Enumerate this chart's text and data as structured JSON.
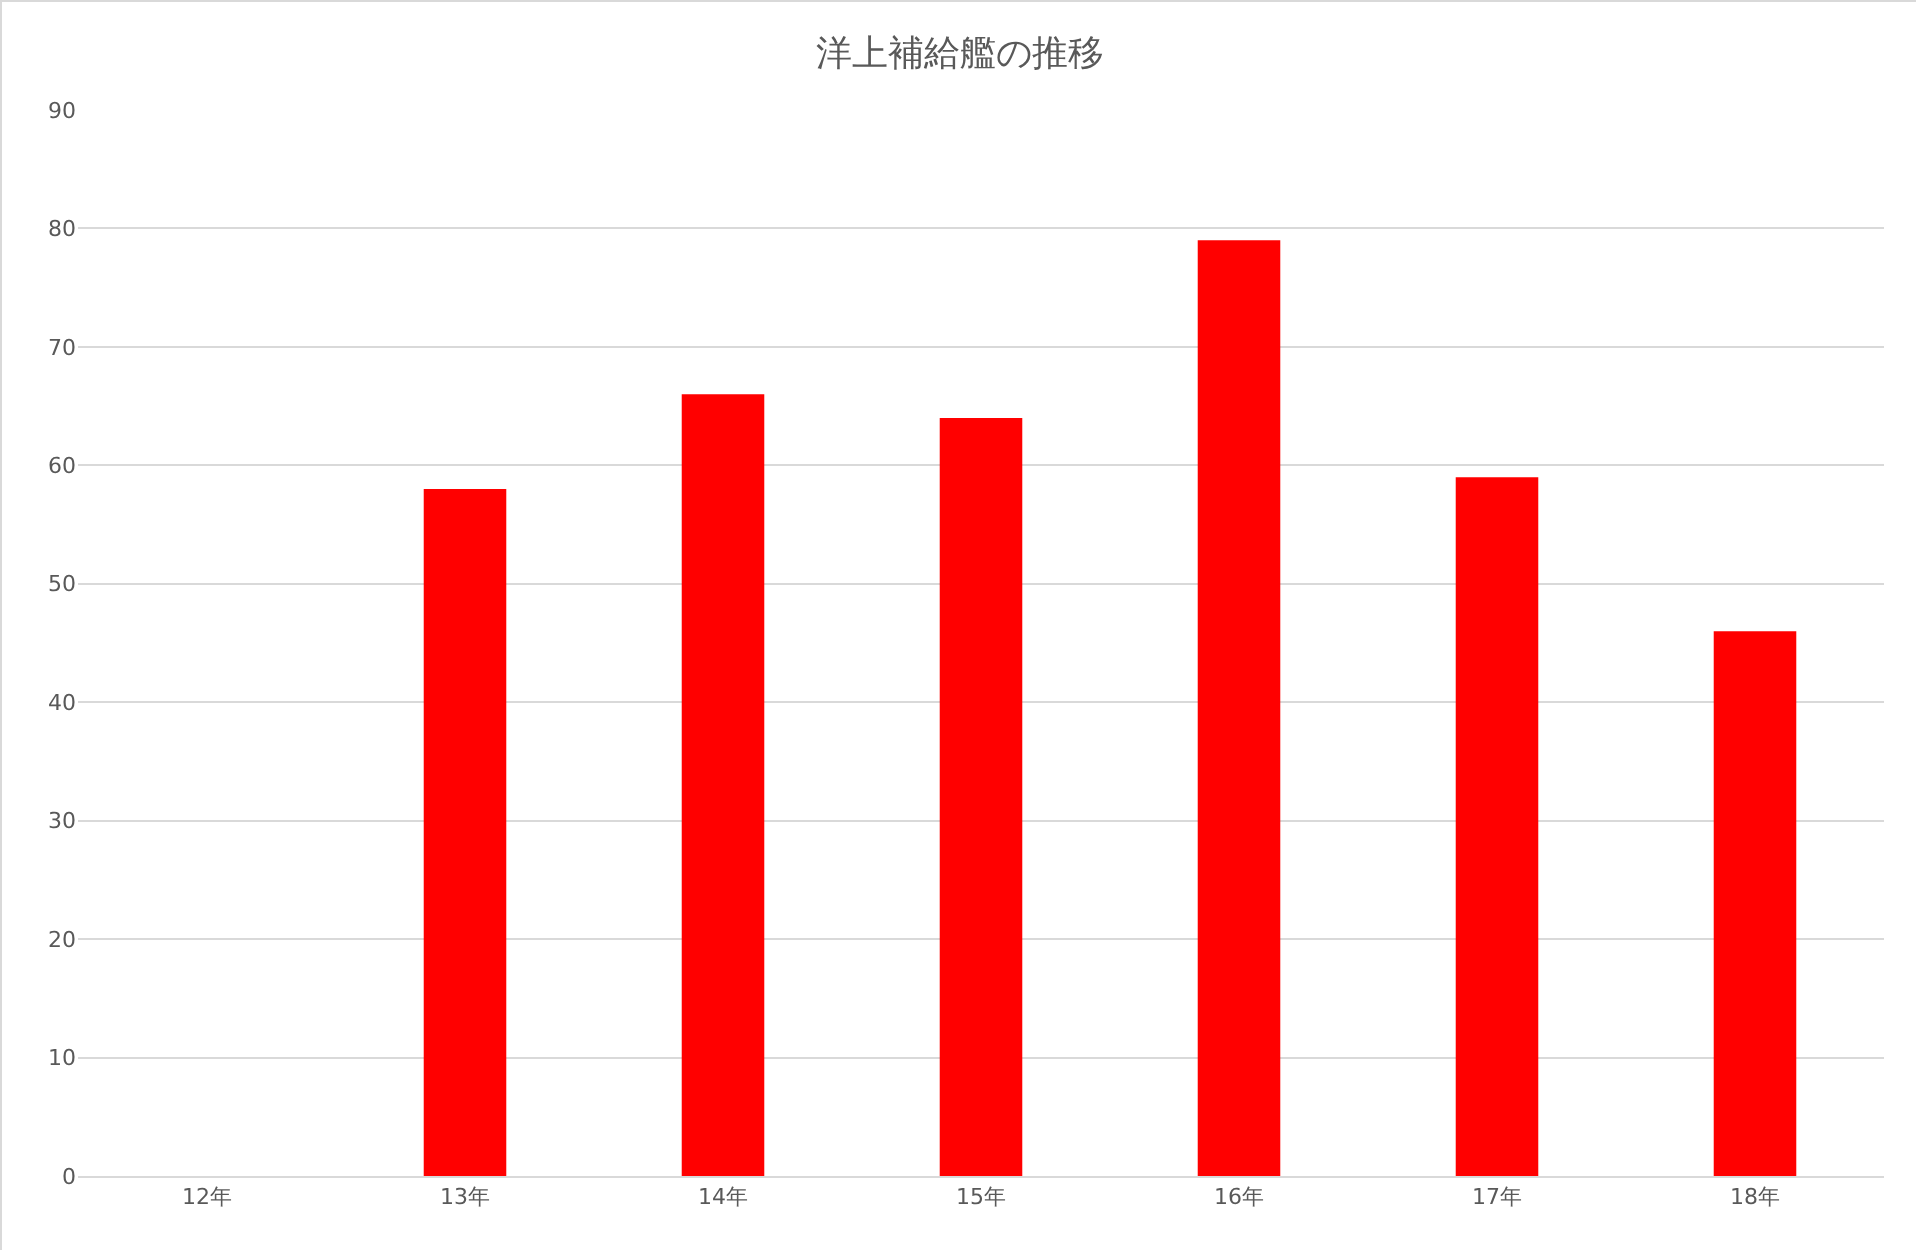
{
  "chart_data": {
    "type": "bar",
    "title": "洋上補給艦の推移",
    "categories": [
      "12年",
      "13年",
      "14年",
      "15年",
      "16年",
      "17年",
      "18年"
    ],
    "values": [
      null,
      58,
      66,
      64,
      79,
      59,
      46
    ],
    "color": "#ff0000",
    "ylim": [
      0,
      90
    ],
    "yticks": [
      0,
      10,
      20,
      30,
      40,
      50,
      60,
      70,
      80,
      90
    ],
    "grid": "y",
    "legend": false
  }
}
